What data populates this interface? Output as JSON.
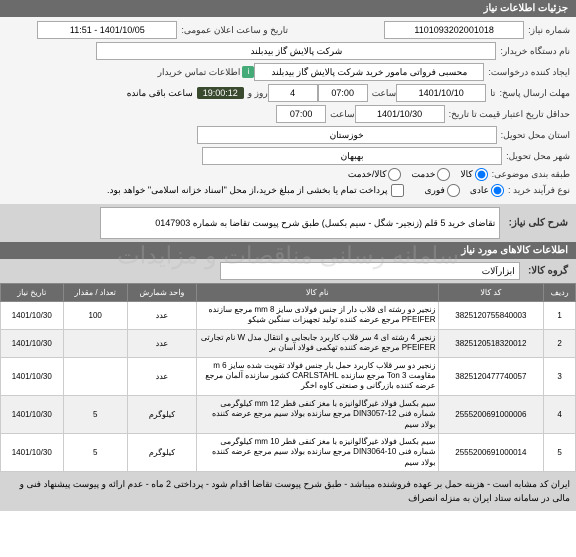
{
  "headers": {
    "main": "جزئیات اطلاعات نیاز",
    "summary": "شرح کلی نیاز:",
    "items": "اطلاعات کالاهای مورد نیاز",
    "group": "گروه کالا:"
  },
  "labels": {
    "need_no": "شماره نیاز:",
    "buyer_org": "نام دستگاه خریدار:",
    "requester": "ایجاد کننده درخواست:",
    "deadline": "مهلت ارسال پاسخ:",
    "validity": "حداقل تاریخ اعتبار قیمت تا تاریخ:",
    "province": "استان محل تحویل:",
    "city": "شهر محل تحویل:",
    "category": "طبقه بندی موضوعی:",
    "purchase_type": "نوع فرآیند خرید :",
    "purchase_note": "پرداخت تمام یا بخشی از مبلغ خرید،از محل \"اسناد خزانه اسلامی\" خواهد بود.",
    "announce": "تاریخ و ساعت اعلان عمومی:",
    "contact": "اطلاعات تماس خریدار",
    "day": "روز و",
    "hour": "ساعت",
    "remain": "ساعت باقی مانده",
    "ta": "تا"
  },
  "fields": {
    "need_no": "1101093202001018",
    "buyer_org": "شرکت پالایش گاز بیدبلند",
    "requester": "محسبی فرواتی مامور خرید شرکت پالایش گاز بیدبلند",
    "deadline_date": "1401/10/10",
    "deadline_time": "07:00",
    "deadline_days": "4",
    "countdown": "19:00:12",
    "validity_date": "1401/10/30",
    "validity_time": "07:00",
    "province": "خوزستان",
    "city": "بهبهان",
    "announce": "1401/10/05 - 11:51"
  },
  "radios": {
    "cat": {
      "opt1": "کالا",
      "opt2": "خدمت",
      "opt3": "کالا/خدمت"
    },
    "ptype": {
      "opt1": "عادی",
      "opt2": "فوری"
    }
  },
  "summary_text": "تقاضای خرید 5 قلم (زنجیر- شگل - سیم بکسل) طبق شرح پیوست تقاضا به شماره 0147903",
  "group_value": "ابزارآلات",
  "table": {
    "cols": [
      "ردیف",
      "کد کالا",
      "نام کالا",
      "واحد شمارش",
      "تعداد / مقدار",
      "تاریخ نیاز"
    ],
    "rows": [
      {
        "idx": "1",
        "code": "3825120755840003",
        "name": "زنجیر دو رشته ای قلاب دار از جنس فولادی سایز mm 8 مرجع سازنده PFEIFER مرجع عرضه کننده تولید تجهیزات سنگین شیکو",
        "unit": "عدد",
        "qty": "100",
        "date": "1401/10/30"
      },
      {
        "idx": "2",
        "code": "3825120518320012",
        "name": "زنجیر 4 رشته ای 4 سر قلاب کاربرد جابجایی و انتقال مدل W نام تجارتی PFEIFER مرجع عرضه کننده تهکمی فولاد آسان بر",
        "unit": "عدد",
        "qty": "",
        "date": "1401/10/30"
      },
      {
        "idx": "3",
        "code": "3825120477740057",
        "name": "زنجیر دو سر قلاب کاربرد حمل بار جنس فولاد تقویت شده سایز m 6 مقاومت Ton 3 مرجع سازنده CARLSTAHL کشور سازنده آلمان مرجع عرضه کننده بازرگانی و صنعتی کاوه اخگر",
        "unit": "عدد",
        "qty": "",
        "date": "1401/10/30"
      },
      {
        "idx": "4",
        "code": "2555200691000006",
        "name": "سیم بکسل فولاد غیرگالوانیزه با مغز کنفی قطر mm 12 کیلوگرمی شماره فنی 12-DIN3057 مرجع سازنده بولاد سیم مرجع عرضه کننده بولاد سیم",
        "unit": "کیلوگرم",
        "qty": "5",
        "date": "1401/10/30"
      },
      {
        "idx": "5",
        "code": "2555200691000014",
        "name": "سیم بکسل فولاد غیرگالوانیزه با مغز کنفی قطر mm 10 کیلوگرمی شماره فنی 10-DIN3064 مرجع سازنده بولاد سیم مرجع عرضه کننده بولاد سیم",
        "unit": "کیلوگرم",
        "qty": "5",
        "date": "1401/10/30"
      }
    ]
  },
  "footer": "ایران کد مشابه است - هزینه حمل بر عهده فروشنده میباشد - طبق شرح پیوست تقاضا اقدام شود - پرداختی 2 ماه - عدم ارائه و پیوست پیشنهاد فنی و مالی در سامانه ستاد ایران به منزله انصراف",
  "watermark": "سامانه رسانی مناقصات و مزایدات"
}
